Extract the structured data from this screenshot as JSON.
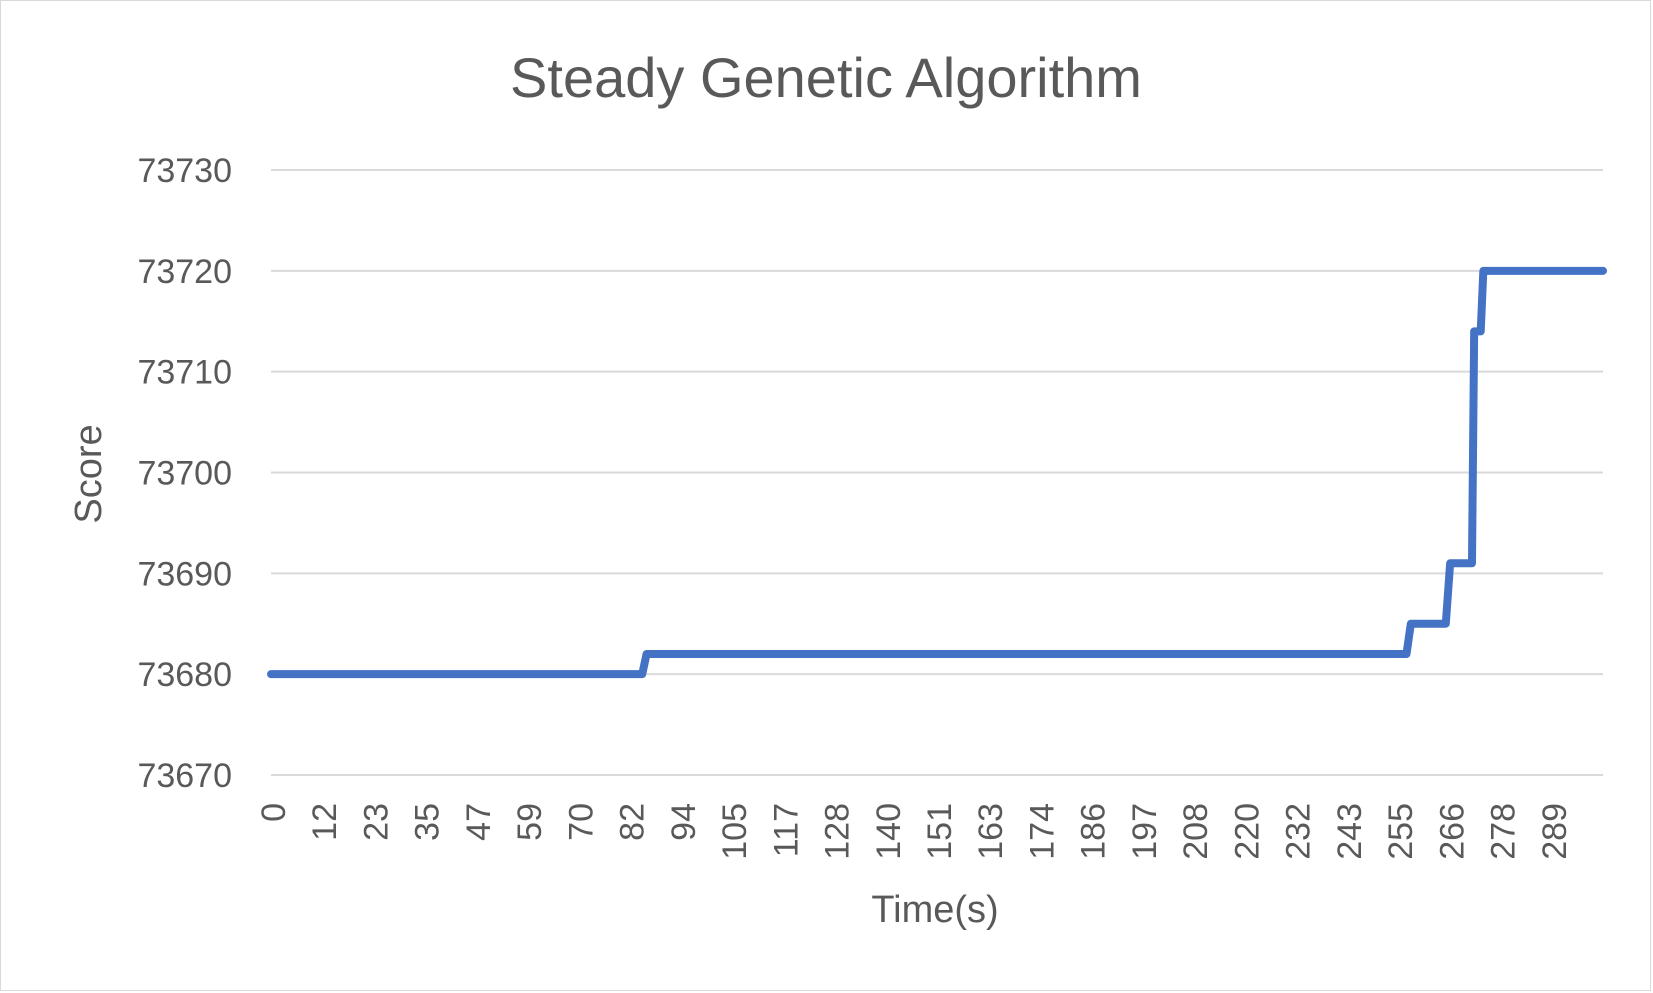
{
  "chart_data": {
    "type": "line",
    "title": "Steady Genetic Algorithm",
    "xlabel": "Time(s)",
    "ylabel": "Score",
    "ylim": [
      73670,
      73730
    ],
    "yticks": [
      "73730",
      "73720",
      "73710",
      "73700",
      "73690",
      "73680",
      "73670"
    ],
    "xticks": [
      "0",
      "12",
      "23",
      "35",
      "47",
      "59",
      "70",
      "82",
      "94",
      "105",
      "117",
      "128",
      "140",
      "151",
      "163",
      "174",
      "186",
      "197",
      "208",
      "220",
      "232",
      "243",
      "255",
      "266",
      "278",
      "289"
    ],
    "grid": true,
    "legend": "none",
    "series": [
      {
        "color": "#4472c4",
        "points": [
          [
            0,
            73680
          ],
          [
            85,
            73680
          ],
          [
            86,
            73682
          ],
          [
            260,
            73682
          ],
          [
            261,
            73685
          ],
          [
            269,
            73685
          ],
          [
            270,
            73691
          ],
          [
            275,
            73691
          ],
          [
            275.5,
            73714
          ],
          [
            277,
            73714
          ],
          [
            277.6,
            73720
          ],
          [
            305,
            73720
          ]
        ]
      }
    ]
  }
}
